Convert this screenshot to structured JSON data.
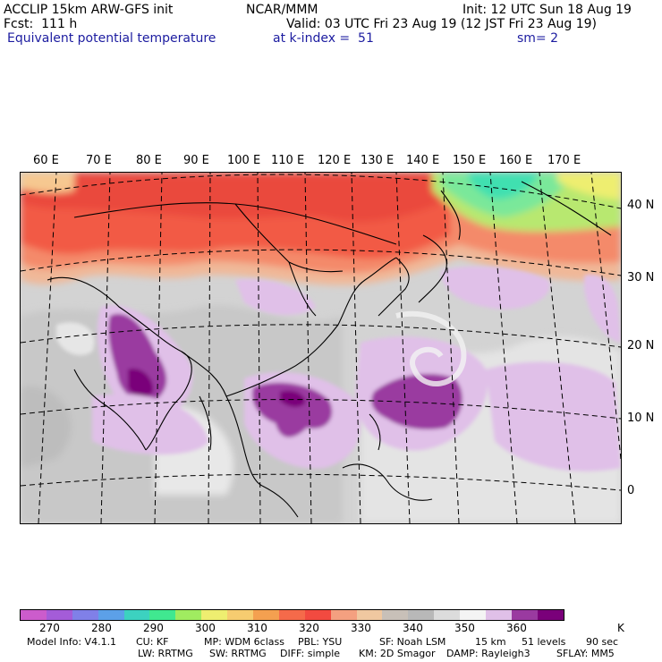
{
  "header": {
    "model": "ACCLIP 15km ARW-GFS init",
    "org": "NCAR/MMM",
    "init": "Init: 12 UTC Sun 18 Aug 19",
    "fcst": "Fcst:  111 h",
    "valid": "Valid: 03 UTC Fri 23 Aug 19 (12 JST Fri 23 Aug 19)",
    "field": "Equivalent potential temperature",
    "level": "at k-index =  51",
    "smooth": "sm= 2"
  },
  "map": {
    "lon_labels": [
      "60 E",
      "70 E",
      "80 E",
      "90 E",
      "100 E",
      "110 E",
      "120 E",
      "130 E",
      "140 E",
      "150 E",
      "160 E",
      "170 E"
    ],
    "lat_labels": [
      "40 N",
      "30 N",
      "20 N",
      "10 N",
      "0"
    ]
  },
  "colorbar": {
    "tick_labels": [
      "270",
      "280",
      "290",
      "300",
      "310",
      "320",
      "330",
      "340",
      "350",
      "360",
      "K"
    ],
    "colors": [
      "#cc5ccc",
      "#a45cd8",
      "#8080e8",
      "#5ca0e8",
      "#3cd2c0",
      "#40e890",
      "#a0ec60",
      "#eeee70",
      "#f6cc70",
      "#f4a050",
      "#f56a4a",
      "#f24a40",
      "#f4a080",
      "#f0c8a0",
      "#c8c0b8",
      "#b8b8b8",
      "#dcdcdc",
      "#f4f4f4",
      "#e0c0e8",
      "#9a3aa0",
      "#7a007a"
    ]
  },
  "footer": {
    "line1": {
      "model_info": "Model Info: V4.1.1",
      "cu": "CU: KF",
      "mp": "MP: WDM 6class",
      "pbl": "PBL: YSU",
      "sf": "SF: Noah LSM",
      "res": "15 km",
      "levels": "51 levels",
      "dt": "90 sec"
    },
    "line2": {
      "lw": "LW: RRTMG",
      "sw": "SW: RRTMG",
      "diff": "DIFF: simple",
      "km": "KM: 2D Smagor",
      "damp": "DAMP: Rayleigh3",
      "sflay": "SFLAY: MM5"
    }
  }
}
